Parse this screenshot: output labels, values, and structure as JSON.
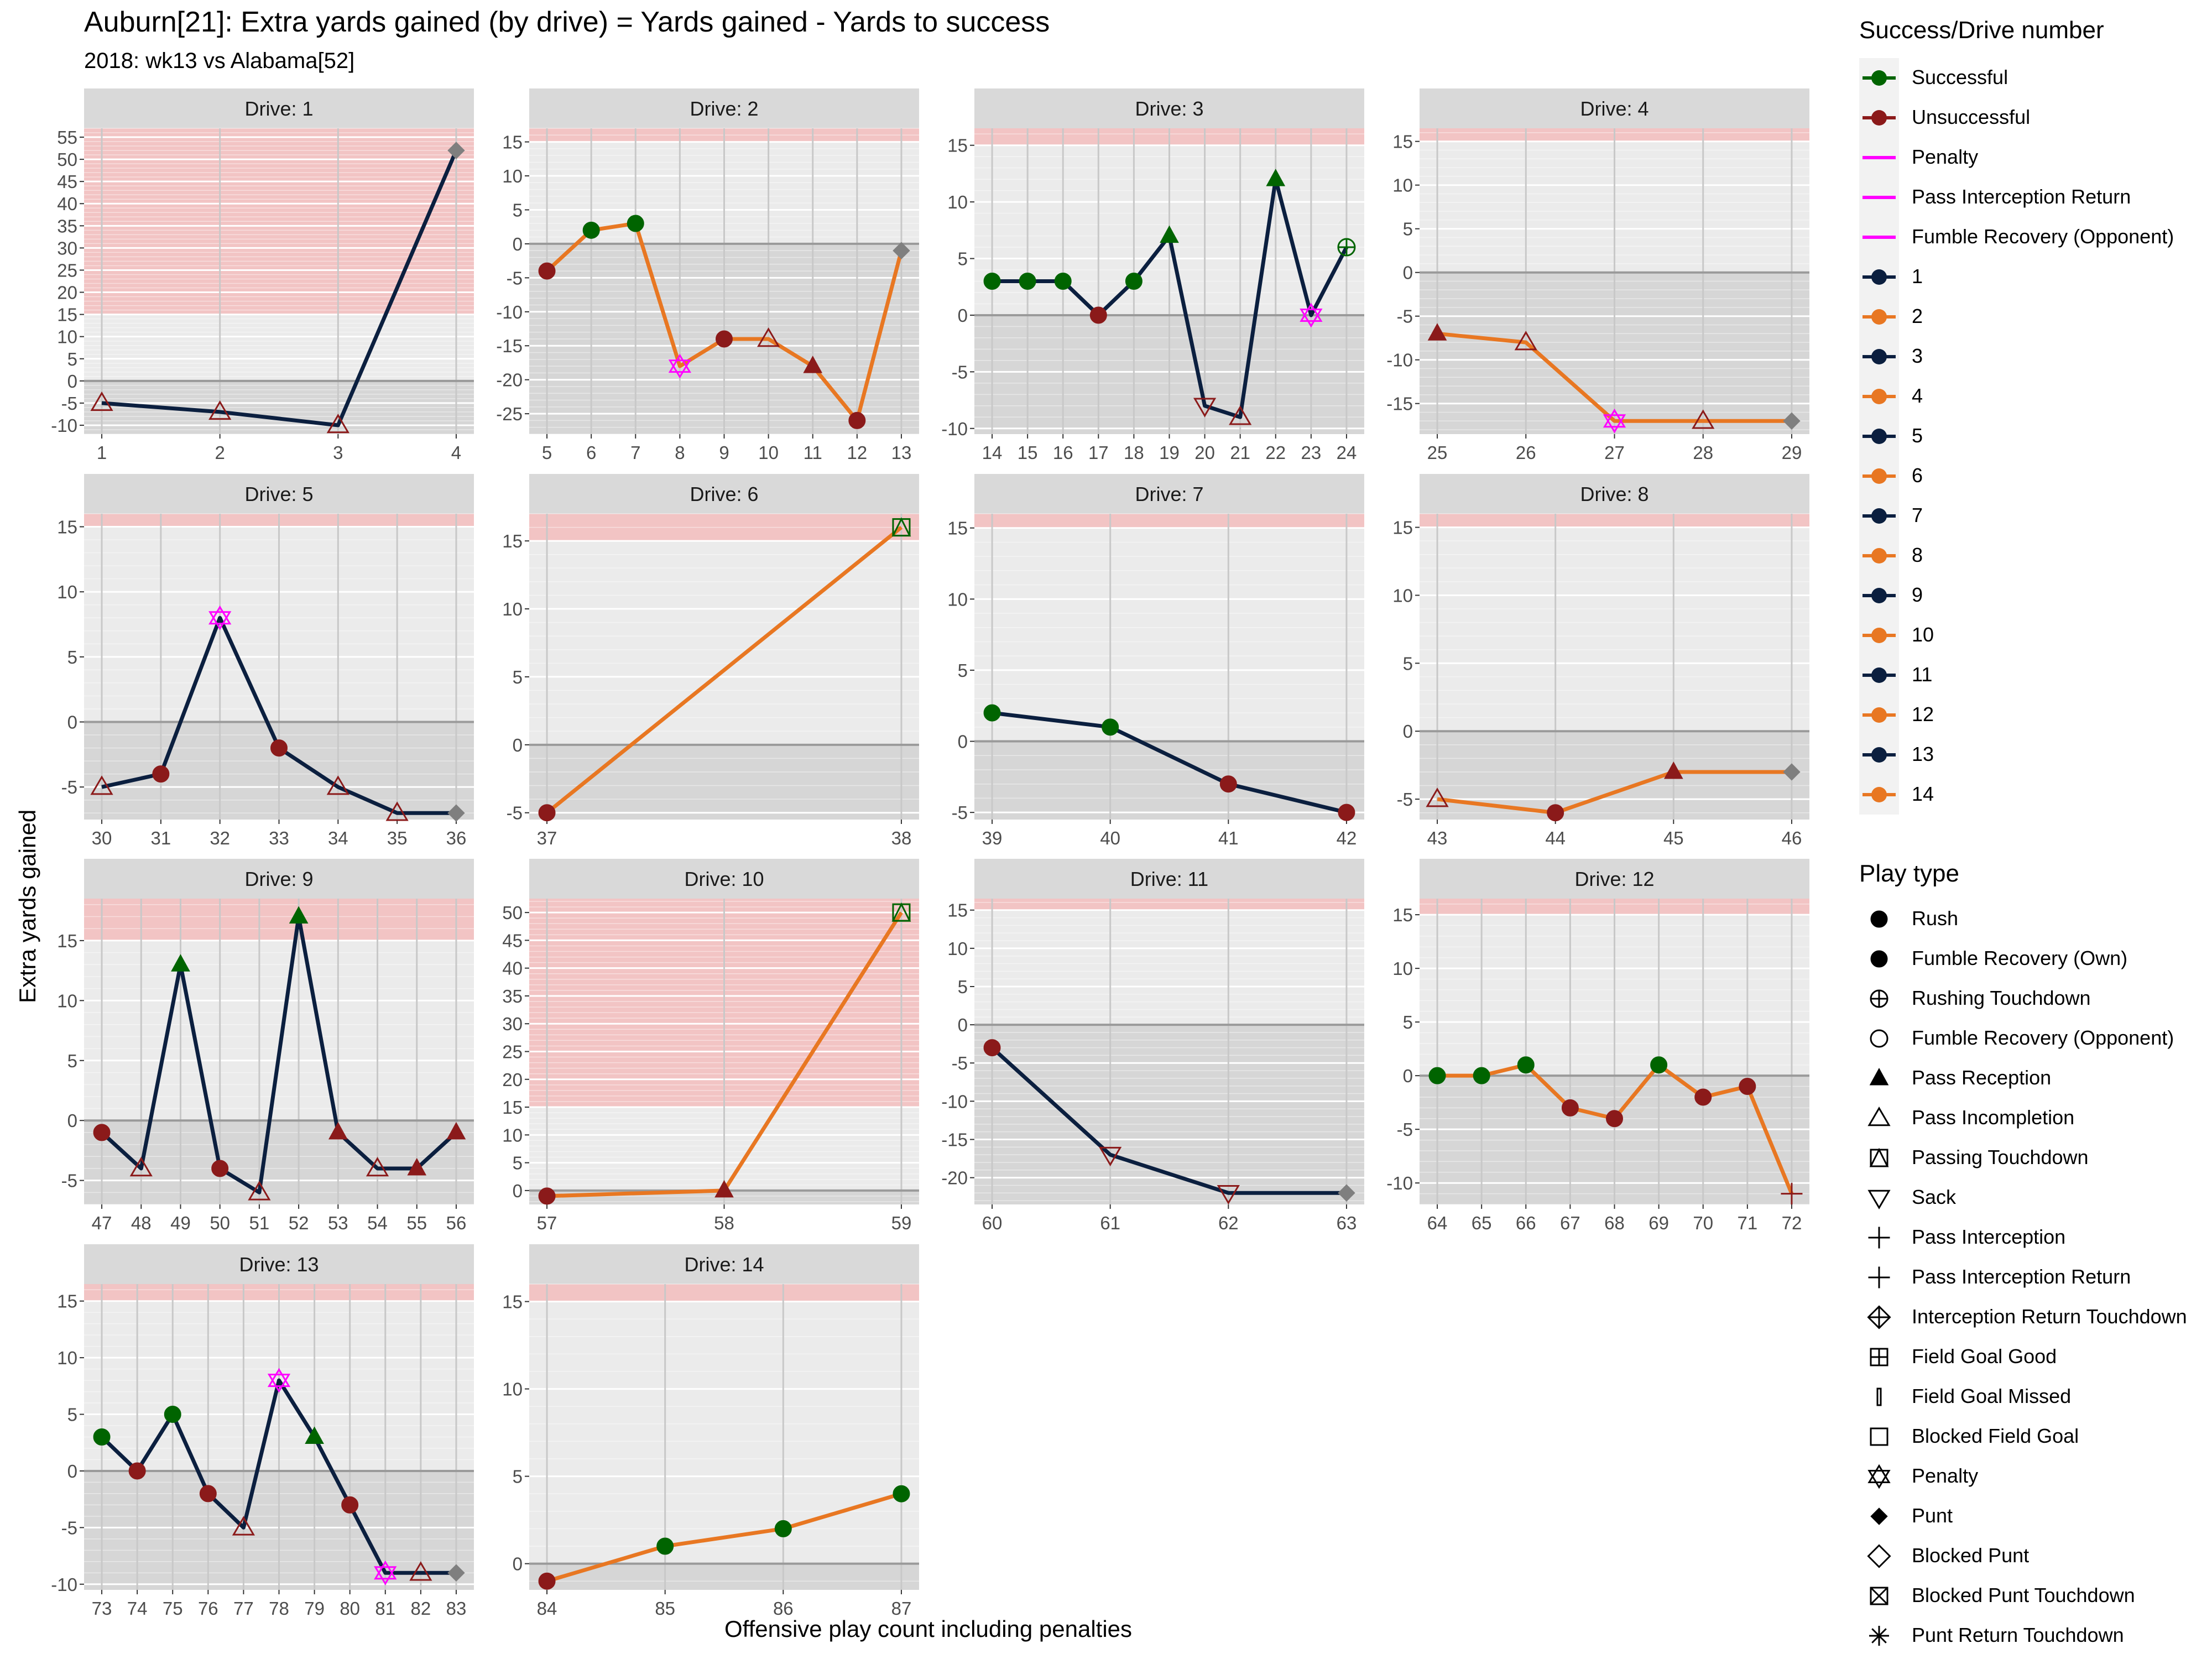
{
  "header": {
    "title": "Auburn[21]: Extra yards gained (by drive) = Yards gained - Yards to success",
    "subtitle": "2018: wk13 vs Alabama[52]"
  },
  "colors": {
    "successful": "#006400",
    "unsuccessful": "#8B1A1A",
    "penalty": "#FF00FF",
    "odd_drive": "#0B1F3F",
    "even_drive": "#E87722",
    "success_zone": "#F2C4C4",
    "panel_bg": "#EBEBEB",
    "strip_bg": "#D9D9D9",
    "below_zero": "#D6D6D6",
    "punt_marker": "#7F7F7F"
  },
  "chart_data": {
    "type": "line",
    "xlabel": "Offensive play count including penalties",
    "ylabel": "Extra yards gained",
    "success_threshold": 15,
    "panels": [
      {
        "strip": "Drive: 1",
        "ylim": [
          -12,
          57
        ],
        "yticks": [
          -10,
          -5,
          0,
          5,
          10,
          15,
          20,
          25,
          30,
          35,
          40,
          45,
          50,
          55
        ],
        "points": [
          {
            "x": 1,
            "y": -5,
            "shape": "triangle-open",
            "status": "Unsuccessful"
          },
          {
            "x": 2,
            "y": -7,
            "shape": "triangle-open",
            "status": "Unsuccessful"
          },
          {
            "x": 3,
            "y": -10,
            "shape": "triangle-open",
            "status": "Unsuccessful"
          },
          {
            "x": 4,
            "y": 52,
            "shape": "diamond",
            "status": "punt"
          }
        ]
      },
      {
        "strip": "Drive: 2",
        "ylim": [
          -28,
          17
        ],
        "yticks": [
          -25,
          -20,
          -15,
          -10,
          -5,
          0,
          5,
          10,
          15
        ],
        "points": [
          {
            "x": 5,
            "y": -4,
            "shape": "circle",
            "status": "Unsuccessful"
          },
          {
            "x": 6,
            "y": 2,
            "shape": "circle",
            "status": "Successful"
          },
          {
            "x": 7,
            "y": 3,
            "shape": "circle",
            "status": "Successful"
          },
          {
            "x": 8,
            "y": -18,
            "shape": "star-open",
            "status": "Penalty"
          },
          {
            "x": 9,
            "y": -14,
            "shape": "circle",
            "status": "Unsuccessful"
          },
          {
            "x": 10,
            "y": -14,
            "shape": "triangle-open",
            "status": "Unsuccessful"
          },
          {
            "x": 11,
            "y": -18,
            "shape": "triangle",
            "status": "Unsuccessful"
          },
          {
            "x": 12,
            "y": -26,
            "shape": "circle",
            "status": "Unsuccessful"
          },
          {
            "x": 13,
            "y": -1,
            "shape": "diamond",
            "status": "punt"
          }
        ]
      },
      {
        "strip": "Drive: 3",
        "ylim": [
          -10.5,
          16.5
        ],
        "yticks": [
          -10,
          -5,
          0,
          5,
          10,
          15
        ],
        "points": [
          {
            "x": 14,
            "y": 3,
            "shape": "circle",
            "status": "Successful"
          },
          {
            "x": 15,
            "y": 3,
            "shape": "circle",
            "status": "Successful"
          },
          {
            "x": 16,
            "y": 3,
            "shape": "circle",
            "status": "Successful"
          },
          {
            "x": 17,
            "y": 0,
            "shape": "circle",
            "status": "Unsuccessful"
          },
          {
            "x": 18,
            "y": 3,
            "shape": "circle",
            "status": "Successful"
          },
          {
            "x": 19,
            "y": 7,
            "shape": "triangle",
            "status": "Successful"
          },
          {
            "x": 20,
            "y": -8,
            "shape": "triangle-down-open",
            "status": "Unsuccessful"
          },
          {
            "x": 21,
            "y": -9,
            "shape": "triangle-open",
            "status": "Unsuccessful"
          },
          {
            "x": 22,
            "y": 12,
            "shape": "triangle",
            "status": "Successful"
          },
          {
            "x": 23,
            "y": 0,
            "shape": "star-open",
            "status": "Penalty"
          },
          {
            "x": 24,
            "y": 6,
            "shape": "circle-plus",
            "status": "Successful"
          }
        ]
      },
      {
        "strip": "Drive: 4",
        "ylim": [
          -18.5,
          16.5
        ],
        "yticks": [
          -15,
          -10,
          -5,
          0,
          5,
          10,
          15
        ],
        "points": [
          {
            "x": 25,
            "y": -7,
            "shape": "triangle",
            "status": "Unsuccessful"
          },
          {
            "x": 26,
            "y": -8,
            "shape": "triangle-open",
            "status": "Unsuccessful"
          },
          {
            "x": 27,
            "y": -17,
            "shape": "star-open",
            "status": "Penalty"
          },
          {
            "x": 28,
            "y": -17,
            "shape": "triangle-open",
            "status": "Unsuccessful"
          },
          {
            "x": 29,
            "y": -17,
            "shape": "diamond",
            "status": "punt"
          }
        ]
      },
      {
        "strip": "Drive: 5",
        "ylim": [
          -7.5,
          16
        ],
        "yticks": [
          -5,
          0,
          5,
          10,
          15
        ],
        "points": [
          {
            "x": 30,
            "y": -5,
            "shape": "triangle-open",
            "status": "Unsuccessful"
          },
          {
            "x": 31,
            "y": -4,
            "shape": "circle",
            "status": "Unsuccessful"
          },
          {
            "x": 32,
            "y": 8,
            "shape": "star-open",
            "status": "Penalty"
          },
          {
            "x": 33,
            "y": -2,
            "shape": "circle",
            "status": "Unsuccessful"
          },
          {
            "x": 34,
            "y": -5,
            "shape": "triangle-open",
            "status": "Unsuccessful"
          },
          {
            "x": 35,
            "y": -7,
            "shape": "triangle-open",
            "status": "Unsuccessful"
          },
          {
            "x": 36,
            "y": -7,
            "shape": "diamond",
            "status": "punt"
          }
        ]
      },
      {
        "strip": "Drive: 6",
        "ylim": [
          -5.5,
          17
        ],
        "yticks": [
          -5,
          0,
          5,
          10,
          15
        ],
        "points": [
          {
            "x": 37,
            "y": -5,
            "shape": "circle",
            "status": "Unsuccessful"
          },
          {
            "x": 38,
            "y": 16,
            "shape": "square-triangle",
            "status": "Successful"
          }
        ]
      },
      {
        "strip": "Drive: 7",
        "ylim": [
          -5.5,
          16
        ],
        "yticks": [
          -5,
          0,
          5,
          10,
          15
        ],
        "points": [
          {
            "x": 39,
            "y": 2,
            "shape": "circle",
            "status": "Successful"
          },
          {
            "x": 40,
            "y": 1,
            "shape": "circle",
            "status": "Successful"
          },
          {
            "x": 41,
            "y": -3,
            "shape": "circle",
            "status": "Unsuccessful"
          },
          {
            "x": 42,
            "y": -5,
            "shape": "circle",
            "status": "Unsuccessful"
          }
        ]
      },
      {
        "strip": "Drive: 8",
        "ylim": [
          -6.5,
          16
        ],
        "yticks": [
          -5,
          0,
          5,
          10,
          15
        ],
        "points": [
          {
            "x": 43,
            "y": -5,
            "shape": "triangle-open",
            "status": "Unsuccessful"
          },
          {
            "x": 44,
            "y": -6,
            "shape": "circle",
            "status": "Unsuccessful"
          },
          {
            "x": 45,
            "y": -3,
            "shape": "triangle",
            "status": "Unsuccessful"
          },
          {
            "x": 46,
            "y": -3,
            "shape": "diamond",
            "status": "punt"
          }
        ]
      },
      {
        "strip": "Drive: 9",
        "ylim": [
          -7,
          18.5
        ],
        "yticks": [
          -5,
          0,
          5,
          10,
          15
        ],
        "points": [
          {
            "x": 47,
            "y": -1,
            "shape": "circle",
            "status": "Unsuccessful"
          },
          {
            "x": 48,
            "y": -4,
            "shape": "triangle-open",
            "status": "Unsuccessful"
          },
          {
            "x": 49,
            "y": 13,
            "shape": "triangle",
            "status": "Successful"
          },
          {
            "x": 50,
            "y": -4,
            "shape": "circle",
            "status": "Unsuccessful"
          },
          {
            "x": 51,
            "y": -6,
            "shape": "triangle-open",
            "status": "Unsuccessful"
          },
          {
            "x": 52,
            "y": 17,
            "shape": "triangle",
            "status": "Successful"
          },
          {
            "x": 53,
            "y": -1,
            "shape": "triangle",
            "status": "Unsuccessful"
          },
          {
            "x": 54,
            "y": -4,
            "shape": "triangle-open",
            "status": "Unsuccessful"
          },
          {
            "x": 55,
            "y": -4,
            "shape": "triangle",
            "status": "Unsuccessful"
          },
          {
            "x": 56,
            "y": -1,
            "shape": "triangle",
            "status": "Unsuccessful"
          }
        ]
      },
      {
        "strip": "Drive: 10",
        "ylim": [
          -2.5,
          52.5
        ],
        "yticks": [
          0,
          5,
          10,
          15,
          20,
          25,
          30,
          35,
          40,
          45,
          50
        ],
        "points": [
          {
            "x": 57,
            "y": -1,
            "shape": "circle",
            "status": "Unsuccessful"
          },
          {
            "x": 58,
            "y": 0,
            "shape": "triangle",
            "status": "Unsuccessful"
          },
          {
            "x": 59,
            "y": 50,
            "shape": "square-triangle",
            "status": "Successful"
          }
        ]
      },
      {
        "strip": "Drive: 11",
        "ylim": [
          -23.5,
          16.5
        ],
        "yticks": [
          -20,
          -15,
          -10,
          -5,
          0,
          5,
          10,
          15
        ],
        "points": [
          {
            "x": 60,
            "y": -3,
            "shape": "circle",
            "status": "Unsuccessful"
          },
          {
            "x": 61,
            "y": -17,
            "shape": "triangle-down-open",
            "status": "Unsuccessful"
          },
          {
            "x": 62,
            "y": -22,
            "shape": "triangle-down-open",
            "status": "Unsuccessful"
          },
          {
            "x": 63,
            "y": -22,
            "shape": "diamond",
            "status": "punt"
          }
        ]
      },
      {
        "strip": "Drive: 12",
        "ylim": [
          -12,
          16.5
        ],
        "yticks": [
          -10,
          -5,
          0,
          5,
          10,
          15
        ],
        "points": [
          {
            "x": 64,
            "y": 0,
            "shape": "circle",
            "status": "Successful"
          },
          {
            "x": 65,
            "y": 0,
            "shape": "circle",
            "status": "Successful"
          },
          {
            "x": 66,
            "y": 1,
            "shape": "circle",
            "status": "Successful"
          },
          {
            "x": 67,
            "y": -3,
            "shape": "circle",
            "status": "Unsuccessful"
          },
          {
            "x": 68,
            "y": -4,
            "shape": "circle",
            "status": "Unsuccessful"
          },
          {
            "x": 69,
            "y": 1,
            "shape": "circle",
            "status": "Successful"
          },
          {
            "x": 70,
            "y": -2,
            "shape": "circle",
            "status": "Unsuccessful"
          },
          {
            "x": 71,
            "y": -1,
            "shape": "circle",
            "status": "Unsuccessful"
          },
          {
            "x": 72,
            "y": -11,
            "shape": "plus",
            "status": "Unsuccessful"
          }
        ]
      },
      {
        "strip": "Drive: 13",
        "ylim": [
          -10.5,
          16.5
        ],
        "yticks": [
          -10,
          -5,
          0,
          5,
          10,
          15
        ],
        "points": [
          {
            "x": 73,
            "y": 3,
            "shape": "circle",
            "status": "Successful"
          },
          {
            "x": 74,
            "y": 0,
            "shape": "circle",
            "status": "Unsuccessful"
          },
          {
            "x": 75,
            "y": 5,
            "shape": "circle",
            "status": "Successful"
          },
          {
            "x": 76,
            "y": -2,
            "shape": "circle",
            "status": "Unsuccessful"
          },
          {
            "x": 77,
            "y": -5,
            "shape": "triangle-open",
            "status": "Unsuccessful"
          },
          {
            "x": 78,
            "y": 8,
            "shape": "star-open",
            "status": "Penalty"
          },
          {
            "x": 79,
            "y": 3,
            "shape": "triangle",
            "status": "Successful"
          },
          {
            "x": 80,
            "y": -3,
            "shape": "circle",
            "status": "Unsuccessful"
          },
          {
            "x": 81,
            "y": -9,
            "shape": "star-open",
            "status": "Penalty"
          },
          {
            "x": 82,
            "y": -9,
            "shape": "triangle-open",
            "status": "Unsuccessful"
          },
          {
            "x": 83,
            "y": -9,
            "shape": "diamond",
            "status": "punt"
          }
        ]
      },
      {
        "strip": "Drive: 14",
        "ylim": [
          -1.5,
          16
        ],
        "yticks": [
          0,
          5,
          10,
          15
        ],
        "points": [
          {
            "x": 84,
            "y": -1,
            "shape": "circle",
            "status": "Unsuccessful"
          },
          {
            "x": 85,
            "y": 1,
            "shape": "circle",
            "status": "Successful"
          },
          {
            "x": 86,
            "y": 2,
            "shape": "circle",
            "status": "Successful"
          },
          {
            "x": 87,
            "y": 4,
            "shape": "circle",
            "status": "Successful"
          }
        ]
      }
    ]
  },
  "legend1": {
    "title": "Success/Drive number",
    "items": [
      {
        "label": "Successful",
        "color": "#006400",
        "kind": "point"
      },
      {
        "label": "Unsuccessful",
        "color": "#8B1A1A",
        "kind": "point"
      },
      {
        "label": "Penalty",
        "color": "#FF00FF",
        "kind": "line"
      },
      {
        "label": "Pass Interception Return",
        "color": "#FF00FF",
        "kind": "line"
      },
      {
        "label": "Fumble Recovery (Opponent)",
        "color": "#FF00FF",
        "kind": "line"
      },
      {
        "label": "1",
        "color": "#0B1F3F",
        "kind": "point"
      },
      {
        "label": "2",
        "color": "#E87722",
        "kind": "point"
      },
      {
        "label": "3",
        "color": "#0B1F3F",
        "kind": "point"
      },
      {
        "label": "4",
        "color": "#E87722",
        "kind": "point"
      },
      {
        "label": "5",
        "color": "#0B1F3F",
        "kind": "point"
      },
      {
        "label": "6",
        "color": "#E87722",
        "kind": "point"
      },
      {
        "label": "7",
        "color": "#0B1F3F",
        "kind": "point"
      },
      {
        "label": "8",
        "color": "#E87722",
        "kind": "point"
      },
      {
        "label": "9",
        "color": "#0B1F3F",
        "kind": "point"
      },
      {
        "label": "10",
        "color": "#E87722",
        "kind": "point"
      },
      {
        "label": "11",
        "color": "#0B1F3F",
        "kind": "point"
      },
      {
        "label": "12",
        "color": "#E87722",
        "kind": "point"
      },
      {
        "label": "13",
        "color": "#0B1F3F",
        "kind": "point"
      },
      {
        "label": "14",
        "color": "#E87722",
        "kind": "point"
      }
    ]
  },
  "legend2": {
    "title": "Play type",
    "items": [
      {
        "label": "Rush",
        "shape": "circle"
      },
      {
        "label": "Fumble Recovery (Own)",
        "shape": "circle"
      },
      {
        "label": "Rushing Touchdown",
        "shape": "circle-plus"
      },
      {
        "label": "Fumble Recovery (Opponent)",
        "shape": "circle-open"
      },
      {
        "label": "Pass Reception",
        "shape": "triangle"
      },
      {
        "label": "Pass Incompletion",
        "shape": "triangle-open"
      },
      {
        "label": "Passing Touchdown",
        "shape": "square-triangle"
      },
      {
        "label": "Sack",
        "shape": "triangle-down-open"
      },
      {
        "label": "Pass Interception",
        "shape": "plus"
      },
      {
        "label": "Pass Interception Return",
        "shape": "plus"
      },
      {
        "label": "Interception Return Touchdown",
        "shape": "diamond-plus"
      },
      {
        "label": "Field Goal Good",
        "shape": "square-plus"
      },
      {
        "label": "Field Goal Missed",
        "shape": "bar"
      },
      {
        "label": "Blocked Field Goal",
        "shape": "square-open"
      },
      {
        "label": "Penalty",
        "shape": "star-open"
      },
      {
        "label": "Punt",
        "shape": "diamond"
      },
      {
        "label": "Blocked Punt",
        "shape": "diamond-open"
      },
      {
        "label": "Blocked Punt Touchdown",
        "shape": "square-x"
      },
      {
        "label": "Punt Return Touchdown",
        "shape": "asterisk"
      }
    ]
  }
}
